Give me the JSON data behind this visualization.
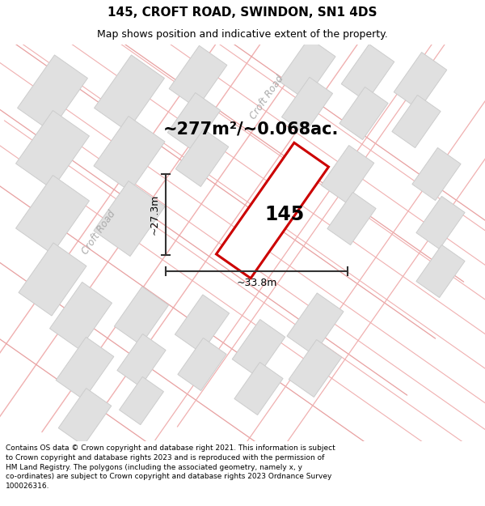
{
  "title": "145, CROFT ROAD, SWINDON, SN1 4DS",
  "subtitle": "Map shows position and indicative extent of the property.",
  "area_text": "~277m²/~0.068ac.",
  "property_number": "145",
  "dim_width": "~33.8m",
  "dim_height": "~27.3m",
  "road_label_left": "Croft Road",
  "road_label_top": "Croft Road",
  "footer_line1": "Contains OS data © Crown copyright and database right 2021. This information is subject",
  "footer_line2": "to Crown copyright and database rights 2023 and is reproduced with the permission of",
  "footer_line3": "HM Land Registry. The polygons (including the associated geometry, namely x, y",
  "footer_line4": "co-ordinates) are subject to Crown copyright and database rights 2023 Ordnance Survey",
  "footer_line5": "100026316.",
  "map_bg": "#f8f8f8",
  "block_fill": "#e0e0e0",
  "block_edge": "#cccccc",
  "road_line_color": "#f0b0b0",
  "road_line_color2": "#e8a0a0",
  "prop_fill": "#ffffff",
  "prop_edge": "#cc0000",
  "dim_color": "#333333",
  "text_color": "#000000",
  "road_text_color": "#aaaaaa",
  "figsize": [
    6.0,
    6.25
  ],
  "dpi": 100,
  "title_fontsize": 11,
  "subtitle_fontsize": 9,
  "area_fontsize": 15,
  "prop_num_fontsize": 17,
  "dim_fontsize": 9,
  "road_fontsize": 8.5,
  "footer_fontsize": 6.5
}
